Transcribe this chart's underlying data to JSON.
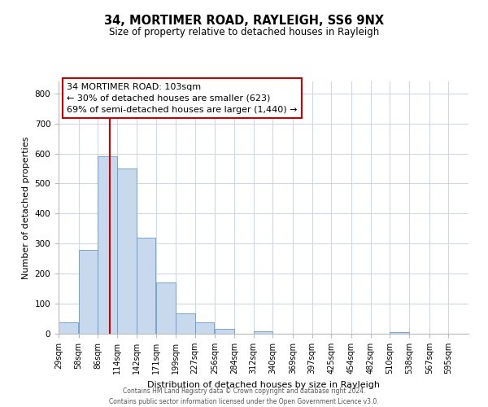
{
  "title": "34, MORTIMER ROAD, RAYLEIGH, SS6 9NX",
  "subtitle": "Size of property relative to detached houses in Rayleigh",
  "xlabel": "Distribution of detached houses by size in Rayleigh",
  "ylabel": "Number of detached properties",
  "bin_labels": [
    "29sqm",
    "58sqm",
    "86sqm",
    "114sqm",
    "142sqm",
    "171sqm",
    "199sqm",
    "227sqm",
    "256sqm",
    "284sqm",
    "312sqm",
    "340sqm",
    "369sqm",
    "397sqm",
    "425sqm",
    "454sqm",
    "482sqm",
    "510sqm",
    "538sqm",
    "567sqm",
    "595sqm"
  ],
  "bar_heights": [
    38,
    278,
    592,
    549,
    321,
    170,
    68,
    38,
    15,
    0,
    8,
    0,
    0,
    0,
    0,
    0,
    0,
    5,
    0,
    0,
    0
  ],
  "bar_color": "#c8d9ed",
  "bar_edge_color": "#6699cc",
  "property_line_x": 103,
  "bin_edges": [
    29,
    58,
    86,
    114,
    142,
    171,
    199,
    227,
    256,
    284,
    312,
    340,
    369,
    397,
    425,
    454,
    482,
    510,
    538,
    567,
    595
  ],
  "bin_width": 28,
  "xlim_right": 624,
  "ylim": [
    0,
    840
  ],
  "yticks": [
    0,
    100,
    200,
    300,
    400,
    500,
    600,
    700,
    800
  ],
  "annotation_title": "34 MORTIMER ROAD: 103sqm",
  "annotation_line1": "← 30% of detached houses are smaller (623)",
  "annotation_line2": "69% of semi-detached houses are larger (1,440) →",
  "annotation_box_color": "#ffffff",
  "annotation_box_edge": "#cc0000",
  "property_vline_color": "#cc0000",
  "footer_line1": "Contains HM Land Registry data © Crown copyright and database right 2024.",
  "footer_line2": "Contains public sector information licensed under the Open Government Licence v3.0.",
  "background_color": "#ffffff",
  "grid_color": "#d0d8e8"
}
